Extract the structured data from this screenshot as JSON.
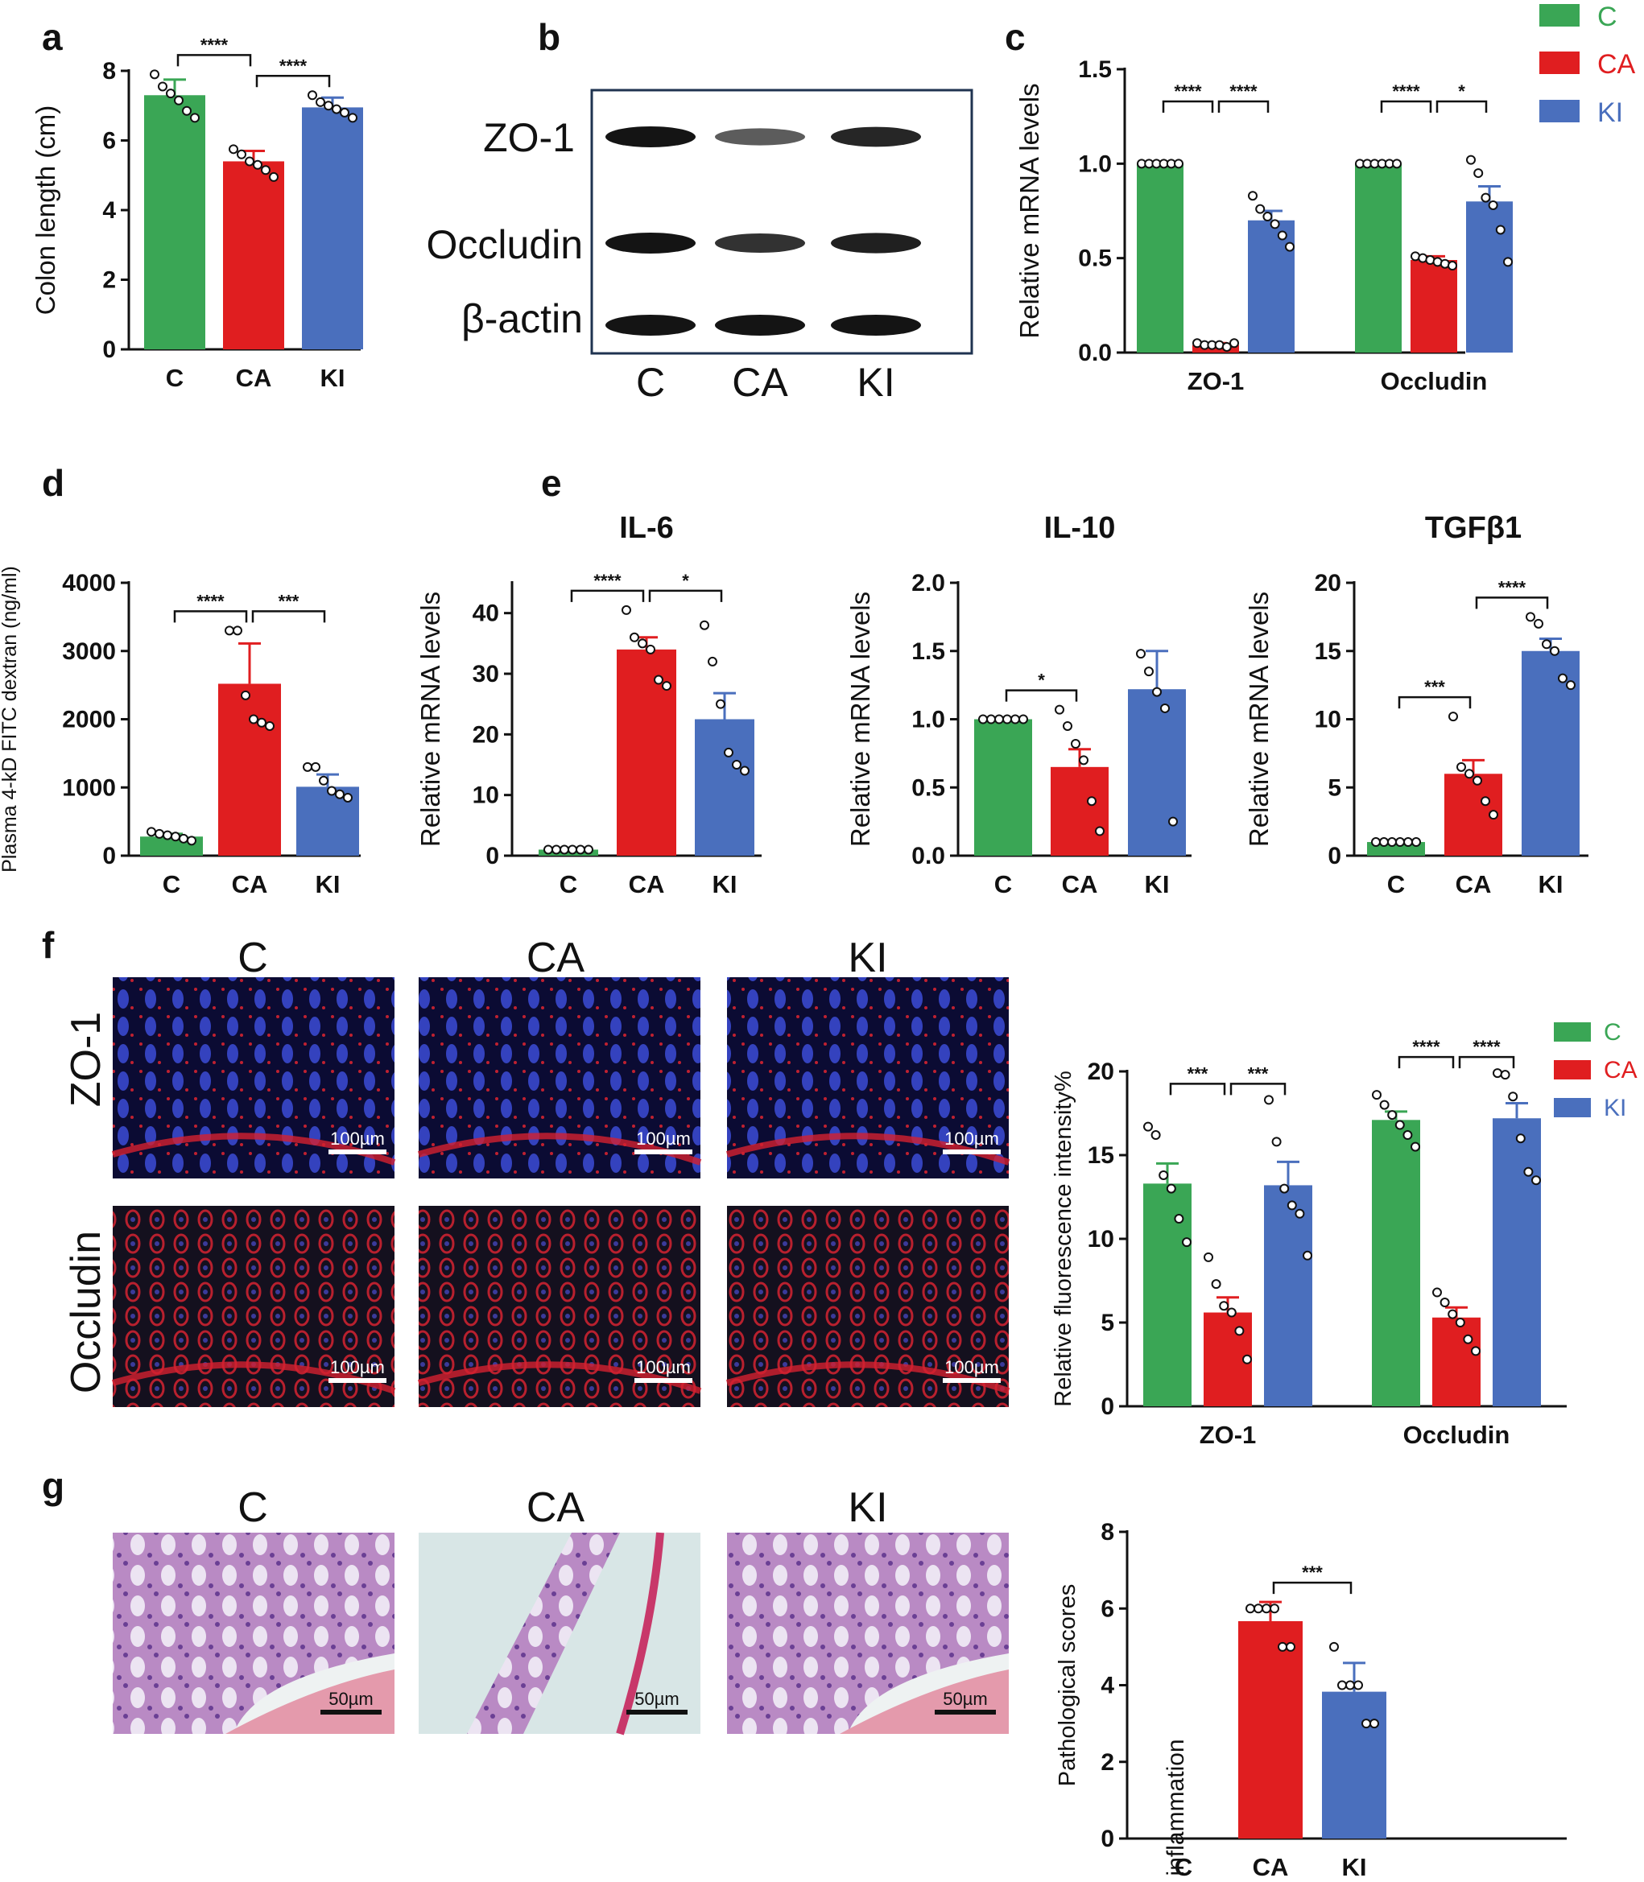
{
  "chart_data": [
    {
      "id": "a",
      "panel_label": "a",
      "type": "bar",
      "ylabel": "Colon length (cm)",
      "ylim": [
        0,
        8
      ],
      "yticks": [
        0,
        2,
        4,
        6,
        8
      ],
      "categories": [
        "C",
        "CA",
        "KI"
      ],
      "values": [
        7.3,
        5.4,
        6.95
      ],
      "errors": [
        0.45,
        0.3,
        0.28
      ],
      "points": [
        [
          7.9,
          7.55,
          7.35,
          7.15,
          6.85,
          6.65
        ],
        [
          5.75,
          5.6,
          5.4,
          5.3,
          5.15,
          4.95
        ],
        [
          7.3,
          7.1,
          7.0,
          6.9,
          6.8,
          6.65
        ]
      ],
      "significance": [
        {
          "from": 0,
          "to": 1,
          "label": "****"
        },
        {
          "from": 1,
          "to": 2,
          "label": "****"
        }
      ]
    },
    {
      "id": "c",
      "panel_label": "c",
      "type": "bar",
      "ylabel": "Relative mRNA levels",
      "ylim": [
        0,
        1.5
      ],
      "yticks": [
        "0.0",
        "0.5",
        "1.0",
        "1.5"
      ],
      "categories": [
        "ZO-1",
        "Occludin"
      ],
      "series": [
        {
          "name": "C",
          "values": [
            1.0,
            1.0
          ],
          "errors": [
            0,
            0
          ]
        },
        {
          "name": "CA",
          "values": [
            0.04,
            0.49
          ],
          "errors": [
            0.01,
            0.02
          ]
        },
        {
          "name": "KI",
          "values": [
            0.7,
            0.8
          ],
          "errors": [
            0.05,
            0.08
          ]
        }
      ],
      "points": [
        [
          [
            1,
            1,
            1,
            1,
            1,
            1
          ],
          [
            0.05,
            0.04,
            0.04,
            0.04,
            0.03,
            0.05
          ],
          [
            0.83,
            0.76,
            0.72,
            0.68,
            0.62,
            0.56
          ]
        ],
        [
          [
            1,
            1,
            1,
            1,
            1,
            1
          ],
          [
            0.51,
            0.5,
            0.49,
            0.48,
            0.47,
            0.46
          ],
          [
            1.02,
            0.95,
            0.82,
            0.78,
            0.65,
            0.48
          ]
        ]
      ],
      "significance": [
        {
          "group": 0,
          "from": 0,
          "to": 1,
          "label": "****"
        },
        {
          "group": 0,
          "from": 1,
          "to": 2,
          "label": "****"
        },
        {
          "group": 1,
          "from": 0,
          "to": 1,
          "label": "****"
        },
        {
          "group": 1,
          "from": 1,
          "to": 2,
          "label": "*"
        }
      ]
    },
    {
      "id": "d",
      "panel_label": "d",
      "type": "bar",
      "ylabel": "Plasma 4-kD FITC dextran (ng/ml)",
      "ylim": [
        0,
        4000
      ],
      "yticks": [
        0,
        1000,
        2000,
        3000,
        4000
      ],
      "categories": [
        "C",
        "CA",
        "KI"
      ],
      "values": [
        280,
        2520,
        1010
      ],
      "errors": [
        40,
        590,
        180
      ],
      "points": [
        [
          350,
          320,
          300,
          280,
          250,
          220
        ],
        [
          3300,
          3300,
          2350,
          2000,
          1950,
          1900
        ],
        [
          1300,
          1300,
          1100,
          950,
          900,
          850
        ]
      ],
      "significance": [
        {
          "from": 0,
          "to": 1,
          "label": "****"
        },
        {
          "from": 1,
          "to": 2,
          "label": "***"
        }
      ]
    },
    {
      "id": "e1",
      "panel_label": "e",
      "title": "IL-6",
      "type": "bar",
      "ylabel": "Relative mRNA levels",
      "ylim": [
        0,
        45
      ],
      "yticks": [
        0,
        10,
        20,
        30,
        40
      ],
      "categories": [
        "C",
        "CA",
        "KI"
      ],
      "values": [
        1,
        34,
        22.5
      ],
      "errors": [
        0,
        2,
        4.3
      ],
      "points": [
        [
          1,
          1,
          1,
          1,
          1,
          1
        ],
        [
          40.5,
          36,
          35,
          34,
          29,
          28
        ],
        [
          38,
          32,
          25,
          17,
          15,
          14
        ]
      ],
      "significance": [
        {
          "from": 0,
          "to": 1,
          "label": "****"
        },
        {
          "from": 1,
          "to": 2,
          "label": "*"
        }
      ]
    },
    {
      "id": "e2",
      "panel_label": "",
      "title": "IL-10",
      "type": "bar",
      "ylabel": "Relative mRNA levels",
      "ylim": [
        0,
        2.0
      ],
      "yticks": [
        "0.0",
        "0.5",
        "1.0",
        "1.5",
        "2.0"
      ],
      "categories": [
        "C",
        "CA",
        "KI"
      ],
      "values": [
        1.0,
        0.65,
        1.22
      ],
      "errors": [
        0,
        0.13,
        0.28
      ],
      "points": [
        [
          1,
          1,
          1,
          1,
          1,
          1
        ],
        [
          1.07,
          0.95,
          0.82,
          0.7,
          0.4,
          0.18
        ],
        [
          1.48,
          1.35,
          1.2,
          1.08,
          0.25
        ]
      ],
      "significance": [
        {
          "from": 0,
          "to": 1,
          "label": "*"
        }
      ]
    },
    {
      "id": "e3",
      "panel_label": "",
      "title": "TGFβ1",
      "type": "bar",
      "ylabel": "Relative mRNA levels",
      "ylim": [
        0,
        20
      ],
      "yticks": [
        0,
        5,
        10,
        15,
        20
      ],
      "categories": [
        "C",
        "CA",
        "KI"
      ],
      "values": [
        1,
        6,
        15
      ],
      "errors": [
        0,
        1,
        0.9
      ],
      "points": [
        [
          1,
          1,
          1,
          1,
          1,
          1
        ],
        [
          10.2,
          6.5,
          6,
          5.5,
          4,
          3
        ],
        [
          17.5,
          17,
          15.5,
          15,
          13,
          12.5
        ]
      ],
      "significance": [
        {
          "from": 0,
          "to": 1,
          "label": "***"
        },
        {
          "from": 1,
          "to": 2,
          "label": "****"
        }
      ]
    },
    {
      "id": "f",
      "panel_label": "",
      "type": "bar",
      "ylabel": "Relative fluorescence intensity%",
      "ylim": [
        0,
        20
      ],
      "yticks": [
        0,
        5,
        10,
        15,
        20
      ],
      "categories": [
        "ZO-1",
        "Occludin"
      ],
      "series": [
        {
          "name": "C",
          "values": [
            13.3,
            17.1
          ],
          "errors": [
            1.2,
            0.5
          ]
        },
        {
          "name": "CA",
          "values": [
            5.6,
            5.3
          ],
          "errors": [
            0.9,
            0.6
          ]
        },
        {
          "name": "KI",
          "values": [
            13.2,
            17.2
          ],
          "errors": [
            1.4,
            0.9
          ]
        }
      ],
      "points": [
        [
          [
            16.7,
            16.2,
            13.8,
            13,
            11.2,
            9.8
          ],
          [
            8.9,
            7.3,
            6,
            5.6,
            4.5,
            2.8
          ],
          [
            18.3,
            15.8,
            13,
            12,
            11.5,
            9
          ]
        ],
        [
          [
            18.6,
            18,
            17.4,
            16.8,
            16.2,
            15.5
          ],
          [
            6.8,
            6.2,
            5.5,
            5,
            4,
            3.3
          ],
          [
            19.9,
            19.8,
            18.5,
            16,
            14,
            13.5
          ]
        ]
      ],
      "significance": [
        {
          "group": 0,
          "from": 0,
          "to": 1,
          "label": "***"
        },
        {
          "group": 0,
          "from": 1,
          "to": 2,
          "label": "***"
        },
        {
          "group": 1,
          "from": 0,
          "to": 1,
          "label": "****"
        },
        {
          "group": 1,
          "from": 1,
          "to": 2,
          "label": "****"
        }
      ]
    },
    {
      "id": "g",
      "panel_label": "",
      "type": "bar",
      "ylabel": "Pathological scores",
      "ylim": [
        0,
        8
      ],
      "yticks": [
        0,
        2,
        4,
        6,
        8
      ],
      "categories": [
        "C",
        "CA",
        "KI"
      ],
      "values": [
        null,
        5.67,
        3.83
      ],
      "errors": [
        0,
        0.5,
        0.75
      ],
      "points": [
        [],
        [
          6,
          6,
          6,
          6,
          5,
          5
        ],
        [
          5,
          4,
          4,
          4,
          3,
          3
        ]
      ],
      "annotation": "No inflammation",
      "significance": [
        {
          "from": 1,
          "to": 2,
          "label": "***"
        }
      ]
    }
  ],
  "colors": {
    "C": "#3aa655",
    "CA": "#e01e20",
    "KI": "#4a6fbd"
  },
  "legend": [
    "C",
    "CA",
    "KI"
  ],
  "panel_labels": {
    "a": "a",
    "b": "b",
    "c": "c",
    "d": "d",
    "e": "e",
    "f": "f",
    "g": "g"
  },
  "blot": {
    "bands": [
      "ZO-1",
      "Occludin",
      "β-actin"
    ],
    "lanes": [
      "C",
      "CA",
      "KI"
    ],
    "intensity": [
      [
        1.0,
        0.4,
        0.85
      ],
      [
        1.0,
        0.75,
        0.9
      ],
      [
        1.0,
        1.0,
        1.0
      ]
    ]
  },
  "micrographs": {
    "columns": [
      "C",
      "CA",
      "KI"
    ],
    "rows_f": [
      "ZO-1",
      "Occludin"
    ],
    "scale_f": "100µm",
    "scale_g": "50µm"
  }
}
